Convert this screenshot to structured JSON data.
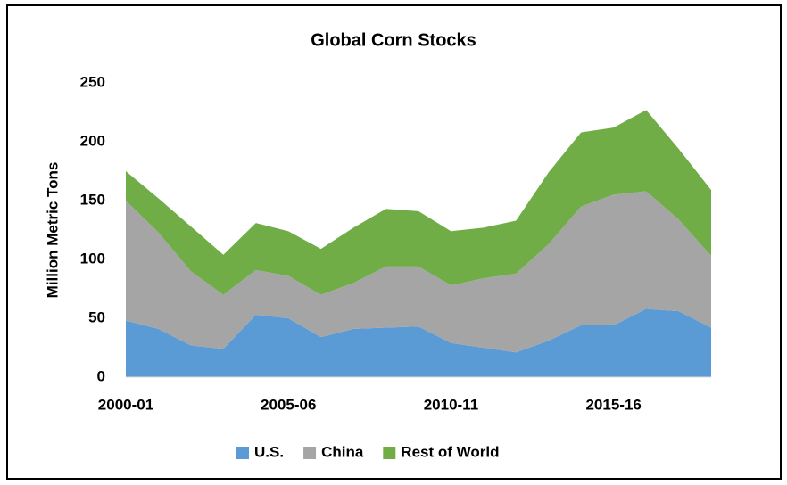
{
  "chart_data": {
    "type": "stacked_area",
    "title": "Global Corn Stocks",
    "y_label": "Million Metric Tons",
    "categories": [
      "2000-01",
      null,
      null,
      null,
      null,
      "2005-06",
      null,
      null,
      null,
      null,
      "2010-11",
      null,
      null,
      null,
      null,
      "2015-16",
      null,
      null,
      null
    ],
    "series": [
      {
        "name": "U.S.",
        "color": "#5b9bd5",
        "values": [
          48,
          41,
          27,
          24,
          53,
          50,
          34,
          41,
          42,
          43,
          29,
          25,
          21,
          31,
          44,
          44,
          58,
          56,
          42
        ]
      },
      {
        "name": "China",
        "color": "#a5a5a5",
        "values": [
          102,
          82,
          63,
          46,
          38,
          36,
          36,
          39,
          52,
          51,
          49,
          59,
          67,
          82,
          101,
          111,
          100,
          78,
          61
        ]
      },
      {
        "name": "Rest of World",
        "color": "#70ad47",
        "values": [
          25,
          29,
          38,
          34,
          40,
          38,
          39,
          47,
          49,
          47,
          46,
          43,
          45,
          61,
          63,
          57,
          69,
          60,
          56
        ]
      }
    ],
    "ylim": [
      0,
      250
    ],
    "yticks": [
      0,
      50,
      100,
      150,
      200,
      250
    ],
    "grid": false,
    "legend": "bottom"
  }
}
